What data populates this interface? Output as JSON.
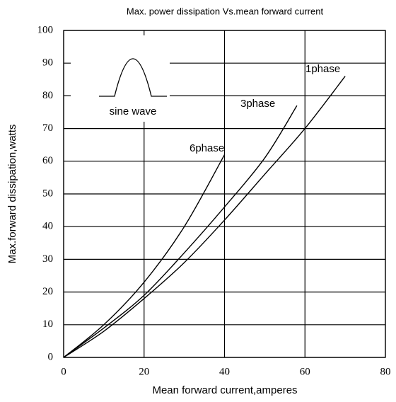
{
  "chart_data": {
    "type": "line",
    "title": "Max. power dissipation Vs.mean forward current",
    "x_label": "Mean forward current,amperes",
    "y_label": "Max.forward dissipation,watts",
    "annotation": "sine wave",
    "xlim": [
      0,
      80
    ],
    "xticks": [
      0,
      20,
      40,
      60,
      80
    ],
    "ylim": [
      0,
      100
    ],
    "yticks": [
      0,
      10,
      20,
      30,
      40,
      50,
      60,
      70,
      80,
      90,
      100
    ],
    "grid": true,
    "series": [
      {
        "name": "1phase",
        "color": "#000000",
        "x": [
          0,
          10,
          20,
          30,
          40,
          50,
          60,
          70
        ],
        "values": [
          0,
          8,
          18,
          29,
          42,
          56,
          70,
          86
        ]
      },
      {
        "name": "3phase",
        "color": "#000000",
        "x": [
          0,
          10,
          20,
          30,
          40,
          50,
          58
        ],
        "values": [
          0,
          9,
          19,
          32,
          46,
          61,
          77
        ]
      },
      {
        "name": "6phase",
        "color": "#000000",
        "x": [
          0,
          10,
          20,
          30,
          40
        ],
        "values": [
          0,
          10,
          23,
          40,
          62
        ]
      }
    ]
  }
}
